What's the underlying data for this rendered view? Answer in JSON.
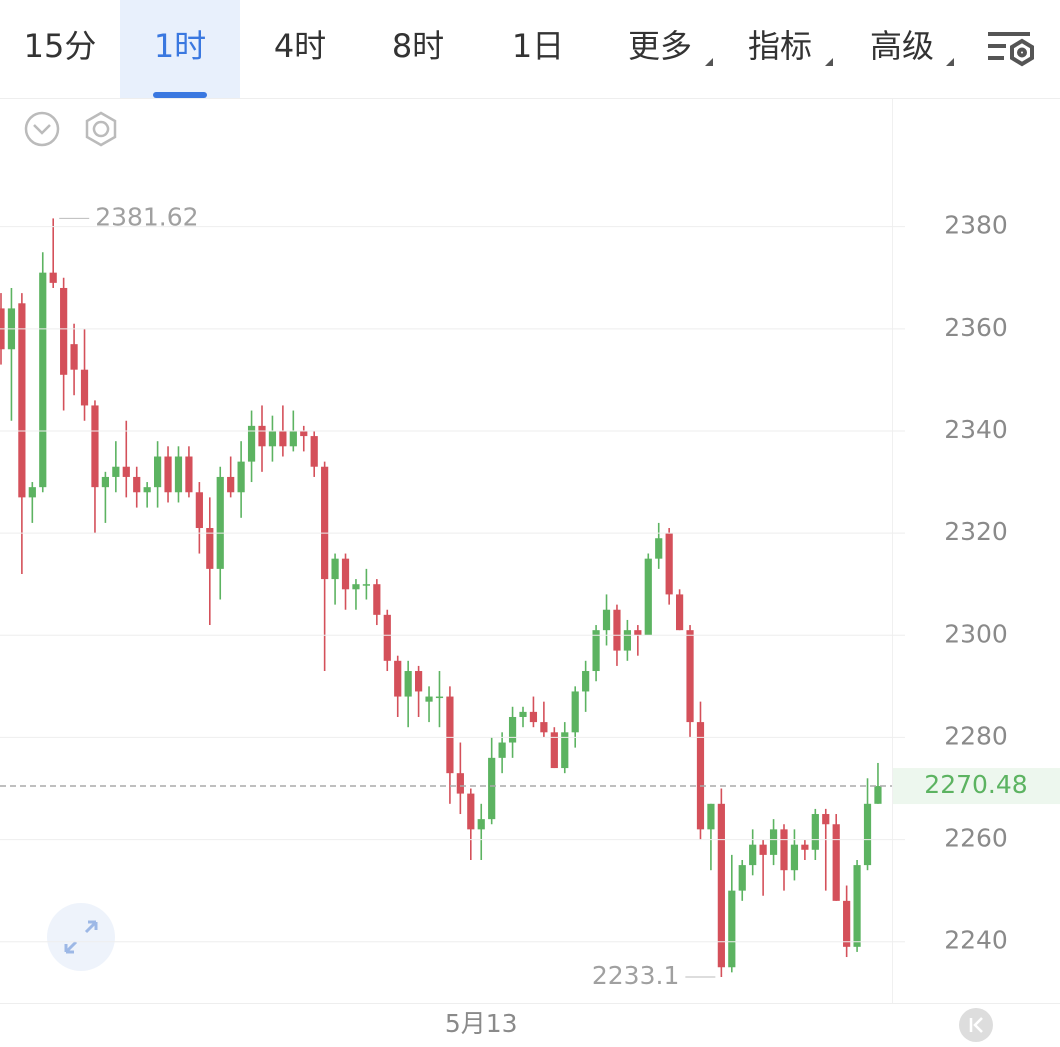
{
  "tabs": [
    "15分",
    "1时",
    "4时",
    "8时",
    "1日",
    "更多",
    "指标",
    "高级"
  ],
  "chart_data": {
    "type": "candlestick",
    "categories": [
      null,
      null,
      null,
      null,
      null,
      null,
      null,
      null,
      null,
      null,
      null,
      null,
      null,
      null,
      null,
      null,
      null,
      null,
      null,
      null,
      null,
      null,
      null,
      null,
      null,
      null,
      null,
      null,
      null,
      null,
      null,
      null,
      null,
      null,
      null,
      null,
      null,
      null,
      null,
      null,
      null,
      null,
      null,
      null,
      null,
      null,
      "5月13",
      null,
      null,
      null,
      null,
      null,
      null,
      null,
      null,
      null,
      null,
      null,
      null,
      null,
      null,
      null,
      null,
      null,
      null,
      null,
      null,
      null,
      null,
      null,
      null,
      null,
      null,
      null,
      null,
      null,
      null,
      null,
      null,
      null,
      null,
      null,
      null,
      null,
      null
    ],
    "open": [
      2364,
      2356,
      2365,
      2327,
      2329,
      2371,
      2368,
      2357,
      2352,
      2345,
      2329,
      2331,
      2333,
      2331,
      2328,
      2329,
      2335,
      2328,
      2335,
      2328,
      2321,
      2313,
      2331,
      2328,
      2334,
      2341,
      2337,
      2340,
      2337,
      2340,
      2339,
      2333,
      2311,
      2315,
      2309,
      2310,
      2310,
      2304,
      2295,
      2288,
      2293,
      2287,
      2288,
      2288,
      2273,
      2269,
      2262,
      2264,
      2276,
      2279,
      2284,
      2285,
      2283,
      2281,
      2274,
      2281,
      2289,
      2293,
      2301,
      2305,
      2297,
      2301,
      2300,
      2315,
      2320,
      2308,
      2301,
      2283,
      2262,
      2267,
      2235,
      2250,
      2255,
      2259,
      2257,
      2262,
      2254,
      2259,
      2258,
      2265,
      2263,
      2248,
      2239,
      2255,
      2267
    ],
    "high": [
      2367,
      2368,
      2367,
      2330,
      2375,
      2381.62,
      2370,
      2361,
      2360,
      2346,
      2332,
      2338,
      2342,
      2333,
      2330,
      2338,
      2337,
      2337,
      2337,
      2330,
      2327,
      2333,
      2335,
      2338,
      2344,
      2345,
      2343,
      2345,
      2344,
      2341,
      2340,
      2334,
      2316,
      2316,
      2311,
      2313,
      2311,
      2305,
      2296,
      2295,
      2294,
      2290,
      2293,
      2290,
      2279,
      2270,
      2267,
      2280,
      2281,
      2286,
      2286,
      2288,
      2287,
      2282,
      2283,
      2290,
      2295,
      2302,
      2308,
      2306,
      2303,
      2302,
      2316,
      2322,
      2321,
      2309,
      2302,
      2287,
      2267,
      2270,
      2257,
      2256,
      2262,
      2260,
      2264,
      2263,
      2262,
      2260,
      2266,
      2266,
      2265,
      2251,
      2256,
      2272,
      2275
    ],
    "low": [
      2353,
      2342,
      2312,
      2322,
      2328,
      2368,
      2344,
      2347,
      2342,
      2320,
      2322,
      2328,
      2327,
      2325,
      2325,
      2325,
      2326,
      2326,
      2327,
      2316,
      2302,
      2307,
      2327,
      2323,
      2330,
      2332,
      2334,
      2335,
      2336,
      2336,
      2331,
      2293,
      2306,
      2305,
      2305,
      2307,
      2302,
      2293,
      2284,
      2282,
      2284,
      2283,
      2282,
      2267,
      2265,
      2256,
      2256,
      2263,
      2273,
      2276,
      2282,
      2282,
      2280,
      2274,
      2273,
      2278,
      2285,
      2291,
      2298,
      2294,
      2295,
      2296,
      2300,
      2313,
      2306,
      2301,
      2280,
      2260,
      2254,
      2233.1,
      2234,
      2248,
      2253,
      2249,
      2255,
      2250,
      2252,
      2256,
      2256,
      2250,
      2248,
      2237,
      2238,
      2254,
      2267
    ],
    "close": [
      2356,
      2364,
      2327,
      2329,
      2371,
      2369,
      2351,
      2352,
      2345,
      2329,
      2331,
      2333,
      2331,
      2328,
      2329,
      2335,
      2328,
      2335,
      2328,
      2321,
      2313,
      2331,
      2328,
      2334,
      2341,
      2337,
      2340,
      2337,
      2340,
      2339,
      2333,
      2311,
      2315,
      2309,
      2310,
      2310,
      2304,
      2295,
      2288,
      2293,
      2289,
      2288,
      2288,
      2273,
      2269,
      2262,
      2264,
      2276,
      2279,
      2284,
      2285,
      2283,
      2281,
      2274,
      2281,
      2289,
      2293,
      2301,
      2305,
      2297,
      2301,
      2300,
      2315,
      2319,
      2308,
      2301,
      2283,
      2262,
      2267,
      2235,
      2250,
      2255,
      2259,
      2257,
      2262,
      2254,
      2259,
      2258,
      2265,
      2263,
      2248,
      2239,
      2255,
      2267,
      2270.48
    ],
    "up_color": "#5cb361",
    "down_color": "#d4505a",
    "ylim": [
      2228,
      2405
    ],
    "yticks": [
      2240,
      2260,
      2280,
      2300,
      2320,
      2340,
      2360,
      2380
    ],
    "grid": true
  }
}
